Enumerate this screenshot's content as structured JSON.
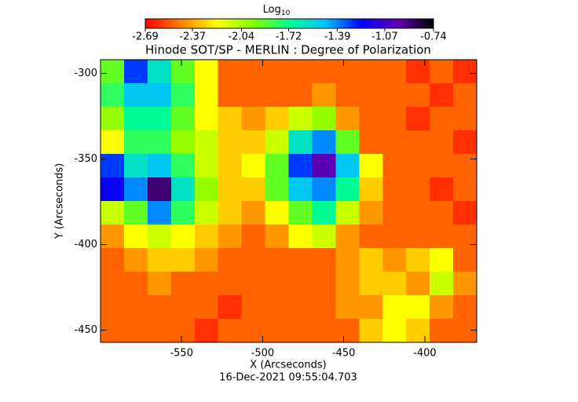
{
  "chart_data": {
    "type": "heatmap",
    "title": "Hinode SOT/SP - MERLIN : Degree of Polarization",
    "colorbar_title": "Log",
    "colorbar_title_subscript": "10",
    "colorbar_ticks": [
      -2.69,
      -2.37,
      -2.04,
      -1.72,
      -1.39,
      -1.07,
      -0.74
    ],
    "zlim": [
      -2.69,
      -0.74
    ],
    "colormap": [
      "#ff0000",
      "#ff8000",
      "#ffff00",
      "#80ff00",
      "#00ff90",
      "#00c0ff",
      "#0000ff",
      "#6000b0",
      "#000000"
    ],
    "xlabel": "X (Arcseconds)",
    "ylabel": "Y (Arcseconds)",
    "xlim": [
      -600,
      -368
    ],
    "ylim": [
      -457,
      -292
    ],
    "xticks": [
      -550,
      -500,
      -450,
      -400
    ],
    "yticks": [
      -300,
      -350,
      -400,
      -450
    ],
    "date_label": "16-Dec-2021 09:55:04.703",
    "z": [
      [
        -1.9,
        -1.3,
        -1.6,
        -1.9,
        -2.2,
        -2.5,
        -2.5,
        -2.5,
        -2.5,
        -2.5,
        -2.5,
        -2.5,
        -2.5,
        -2.6,
        -2.5,
        -2.6
      ],
      [
        -1.8,
        -1.5,
        -1.5,
        -1.8,
        -2.2,
        -2.5,
        -2.5,
        -2.5,
        -2.5,
        -2.4,
        -2.5,
        -2.5,
        -2.5,
        -2.5,
        -2.6,
        -2.5
      ],
      [
        -2.0,
        -1.7,
        -1.7,
        -1.9,
        -2.2,
        -2.3,
        -2.4,
        -2.3,
        -2.1,
        -2.0,
        -2.4,
        -2.5,
        -2.5,
        -2.6,
        -2.5,
        -2.5
      ],
      [
        -2.2,
        -1.8,
        -1.8,
        -2.0,
        -2.1,
        -2.3,
        -2.3,
        -2.1,
        -1.6,
        -1.4,
        -1.9,
        -2.5,
        -2.5,
        -2.5,
        -2.5,
        -2.6
      ],
      [
        -1.3,
        -1.6,
        -1.5,
        -1.8,
        -2.1,
        -2.3,
        -2.2,
        -1.9,
        -1.3,
        -1.0,
        -1.5,
        -2.2,
        -2.5,
        -2.5,
        -2.5,
        -2.5
      ],
      [
        -1.2,
        -1.4,
        -0.9,
        -1.6,
        -2.0,
        -2.3,
        -2.3,
        -1.9,
        -1.5,
        -1.4,
        -1.7,
        -2.3,
        -2.5,
        -2.5,
        -2.6,
        -2.5
      ],
      [
        -2.1,
        -1.9,
        -1.4,
        -1.8,
        -2.1,
        -2.3,
        -2.4,
        -2.2,
        -1.9,
        -1.7,
        -2.1,
        -2.4,
        -2.5,
        -2.5,
        -2.5,
        -2.6
      ],
      [
        -2.4,
        -2.2,
        -2.1,
        -2.2,
        -2.3,
        -2.4,
        -2.5,
        -2.4,
        -2.2,
        -2.1,
        -2.4,
        -2.5,
        -2.5,
        -2.5,
        -2.5,
        -2.5
      ],
      [
        -2.5,
        -2.4,
        -2.3,
        -2.3,
        -2.4,
        -2.5,
        -2.5,
        -2.5,
        -2.5,
        -2.5,
        -2.4,
        -2.3,
        -2.4,
        -2.3,
        -2.2,
        -2.5
      ],
      [
        -2.5,
        -2.5,
        -2.4,
        -2.5,
        -2.5,
        -2.5,
        -2.5,
        -2.5,
        -2.5,
        -2.5,
        -2.4,
        -2.3,
        -2.3,
        -2.4,
        -2.1,
        -2.4
      ],
      [
        -2.5,
        -2.5,
        -2.5,
        -2.5,
        -2.5,
        -2.6,
        -2.5,
        -2.5,
        -2.5,
        -2.5,
        -2.4,
        -2.4,
        -2.2,
        -2.2,
        -2.4,
        -2.5
      ],
      [
        -2.5,
        -2.5,
        -2.5,
        -2.5,
        -2.6,
        -2.5,
        -2.5,
        -2.5,
        -2.5,
        -2.5,
        -2.5,
        -2.3,
        -2.2,
        -2.3,
        -2.5,
        -2.5
      ]
    ]
  }
}
